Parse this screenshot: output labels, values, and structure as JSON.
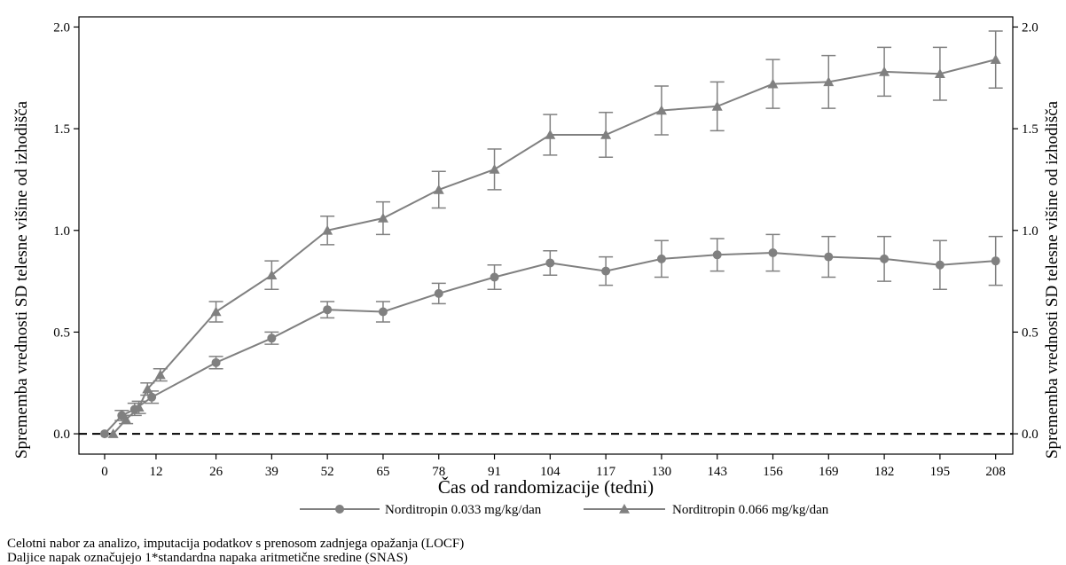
{
  "chart_data": {
    "type": "line",
    "xlabel": "Čas od randomizacije (tedni)",
    "ylabel_left": "Sprememba vrednosti SD telesne višine od izhodišča",
    "ylabel_right": "Sprememba vrednosti SD telesne višine od izhodišča",
    "x_ticks": [
      0,
      12,
      26,
      39,
      52,
      65,
      78,
      91,
      104,
      117,
      130,
      143,
      156,
      169,
      182,
      195,
      208
    ],
    "x_tick_labels": [
      "0",
      "12",
      "26",
      "39",
      "52",
      "65",
      "78",
      "91",
      "104",
      "117",
      "130",
      "143",
      "156",
      "169",
      "182",
      "195",
      "208"
    ],
    "y_ticks": [
      0.0,
      0.5,
      1.0,
      1.5,
      2.0
    ],
    "y_tick_labels": [
      "0.0",
      "0.5",
      "1.0",
      "1.5",
      "2.0"
    ],
    "xlim": [
      -6,
      212
    ],
    "ylim": [
      -0.1,
      2.05
    ],
    "reference_line": 0.0,
    "color": "#808080",
    "series": [
      {
        "name": "Norditropin 0.033 mg/kg/dan",
        "marker": "circle",
        "x": [
          0,
          4,
          7,
          11,
          26,
          39,
          52,
          65,
          78,
          91,
          104,
          117,
          130,
          143,
          156,
          169,
          182,
          195,
          208
        ],
        "y": [
          0.0,
          0.09,
          0.12,
          0.18,
          0.35,
          0.47,
          0.61,
          0.6,
          0.69,
          0.77,
          0.84,
          0.8,
          0.86,
          0.88,
          0.89,
          0.87,
          0.86,
          0.83,
          0.85
        ],
        "error": [
          0.0,
          0.025,
          0.03,
          0.03,
          0.03,
          0.03,
          0.04,
          0.05,
          0.05,
          0.06,
          0.06,
          0.07,
          0.09,
          0.08,
          0.09,
          0.1,
          0.11,
          0.12,
          0.12
        ]
      },
      {
        "name": "Norditropin 0.066 mg/kg/dan",
        "marker": "triangle",
        "x": [
          2,
          5,
          8,
          10,
          13,
          26,
          39,
          52,
          65,
          78,
          91,
          104,
          117,
          130,
          143,
          156,
          169,
          182,
          195,
          208
        ],
        "y": [
          0.0,
          0.07,
          0.13,
          0.22,
          0.29,
          0.6,
          0.78,
          1.0,
          1.06,
          1.2,
          1.3,
          1.47,
          1.47,
          1.59,
          1.61,
          1.72,
          1.73,
          1.78,
          1.77,
          1.84
        ],
        "error": [
          0.0,
          0.02,
          0.03,
          0.03,
          0.03,
          0.05,
          0.07,
          0.07,
          0.08,
          0.09,
          0.1,
          0.1,
          0.11,
          0.12,
          0.12,
          0.12,
          0.13,
          0.12,
          0.13,
          0.14
        ]
      }
    ]
  },
  "footnotes": [
    "Celotni nabor za analizo, imputacija podatkov s prenosom zadnjega opažanja (LOCF)",
    "Daljice napak označujejo 1*standardna napaka aritmetične sredine (SNAS)"
  ]
}
